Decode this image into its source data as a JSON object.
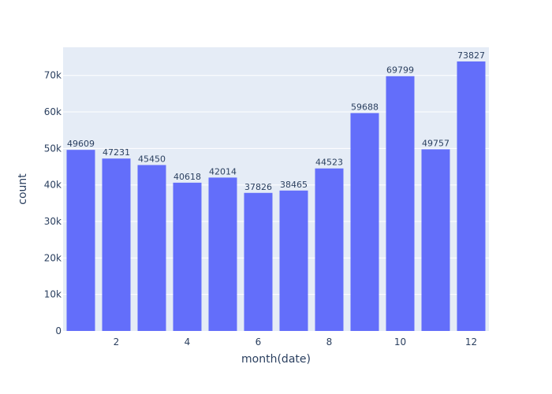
{
  "chart_data": {
    "type": "bar",
    "x": [
      1,
      2,
      3,
      4,
      5,
      6,
      7,
      8,
      9,
      10,
      11,
      12
    ],
    "values": [
      49609,
      47231,
      45450,
      40618,
      42014,
      37826,
      38465,
      44523,
      59688,
      69799,
      49757,
      73827
    ],
    "data_labels": [
      "49609",
      "47231",
      "45450",
      "40618",
      "42014",
      "37826",
      "38465",
      "44523",
      "59688",
      "69799",
      "49757",
      "73827"
    ],
    "title": "",
    "xlabel": "month(date)",
    "ylabel": "count",
    "xlim": [
      0.5,
      12.5
    ],
    "ylim": [
      0,
      77712
    ],
    "x_ticks": [
      2,
      4,
      6,
      8,
      10,
      12
    ],
    "x_tick_labels": [
      "2",
      "4",
      "6",
      "8",
      "10",
      "12"
    ],
    "y_ticks": [
      0,
      10000,
      20000,
      30000,
      40000,
      50000,
      60000,
      70000
    ],
    "y_tick_labels": [
      "0",
      "10k",
      "20k",
      "30k",
      "40k",
      "50k",
      "60k",
      "70k"
    ],
    "grid": true,
    "legend": "none",
    "colors": {
      "bar": "#636efa",
      "plot_background": "#e5ecf6",
      "gridline": "#ffffff",
      "text": "#2a3f5f"
    }
  }
}
